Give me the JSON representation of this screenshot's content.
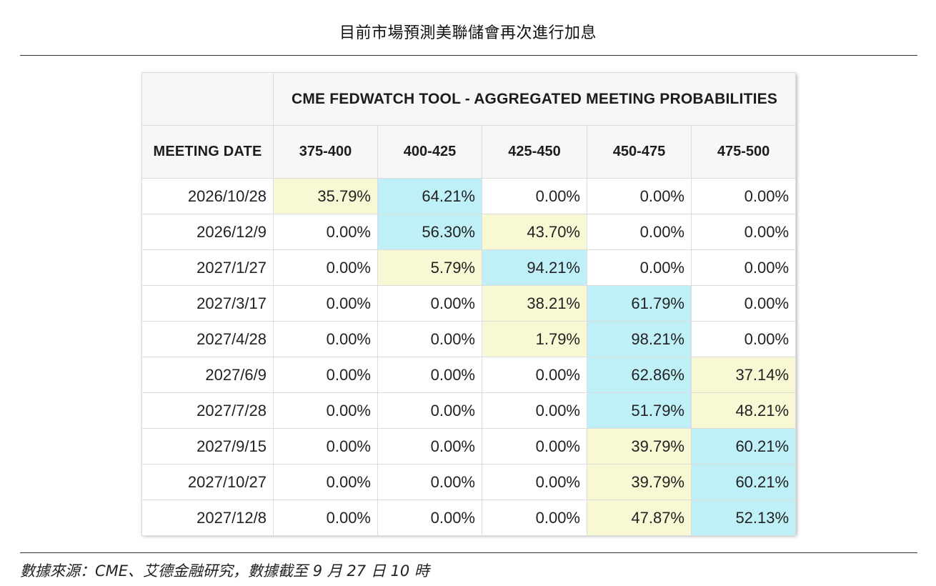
{
  "page": {
    "title": "目前市場預測美聯儲會再次進行加息",
    "source_note": "數據來源：CME、艾德金融研究，數據截至 9 月 27 日 10 時"
  },
  "colors": {
    "highlight_max": "#bff0f8",
    "highlight_second": "#f8f8d4",
    "header_bg": "#f7f7f7",
    "grid_line": "#dcdcdc"
  },
  "chart_data": {
    "type": "table",
    "title": "CME FEDWATCH TOOL - AGGREGATED MEETING PROBABILITIES",
    "row_header_label": "MEETING DATE",
    "columns": [
      "375-400",
      "400-425",
      "425-450",
      "450-475",
      "475-500"
    ],
    "rows": [
      {
        "date": "2026/10/28",
        "values": [
          "35.79%",
          "64.21%",
          "0.00%",
          "0.00%",
          "0.00%"
        ],
        "highlight": [
          "yellow",
          "blue",
          "",
          "",
          ""
        ]
      },
      {
        "date": "2026/12/9",
        "values": [
          "0.00%",
          "56.30%",
          "43.70%",
          "0.00%",
          "0.00%"
        ],
        "highlight": [
          "",
          "blue",
          "yellow",
          "",
          ""
        ]
      },
      {
        "date": "2027/1/27",
        "values": [
          "0.00%",
          "5.79%",
          "94.21%",
          "0.00%",
          "0.00%"
        ],
        "highlight": [
          "",
          "yellow",
          "blue",
          "",
          ""
        ]
      },
      {
        "date": "2027/3/17",
        "values": [
          "0.00%",
          "0.00%",
          "38.21%",
          "61.79%",
          "0.00%"
        ],
        "highlight": [
          "",
          "",
          "yellow",
          "blue",
          ""
        ]
      },
      {
        "date": "2027/4/28",
        "values": [
          "0.00%",
          "0.00%",
          "1.79%",
          "98.21%",
          "0.00%"
        ],
        "highlight": [
          "",
          "",
          "yellow",
          "blue",
          ""
        ]
      },
      {
        "date": "2027/6/9",
        "values": [
          "0.00%",
          "0.00%",
          "0.00%",
          "62.86%",
          "37.14%"
        ],
        "highlight": [
          "",
          "",
          "",
          "blue",
          "yellow"
        ]
      },
      {
        "date": "2027/7/28",
        "values": [
          "0.00%",
          "0.00%",
          "0.00%",
          "51.79%",
          "48.21%"
        ],
        "highlight": [
          "",
          "",
          "",
          "blue",
          "yellow"
        ]
      },
      {
        "date": "2027/9/15",
        "values": [
          "0.00%",
          "0.00%",
          "0.00%",
          "39.79%",
          "60.21%"
        ],
        "highlight": [
          "",
          "",
          "",
          "yellow",
          "blue"
        ]
      },
      {
        "date": "2027/10/27",
        "values": [
          "0.00%",
          "0.00%",
          "0.00%",
          "39.79%",
          "60.21%"
        ],
        "highlight": [
          "",
          "",
          "",
          "yellow",
          "blue"
        ]
      },
      {
        "date": "2027/12/8",
        "values": [
          "0.00%",
          "0.00%",
          "0.00%",
          "47.87%",
          "52.13%"
        ],
        "highlight": [
          "",
          "",
          "",
          "yellow",
          "blue"
        ]
      }
    ]
  }
}
